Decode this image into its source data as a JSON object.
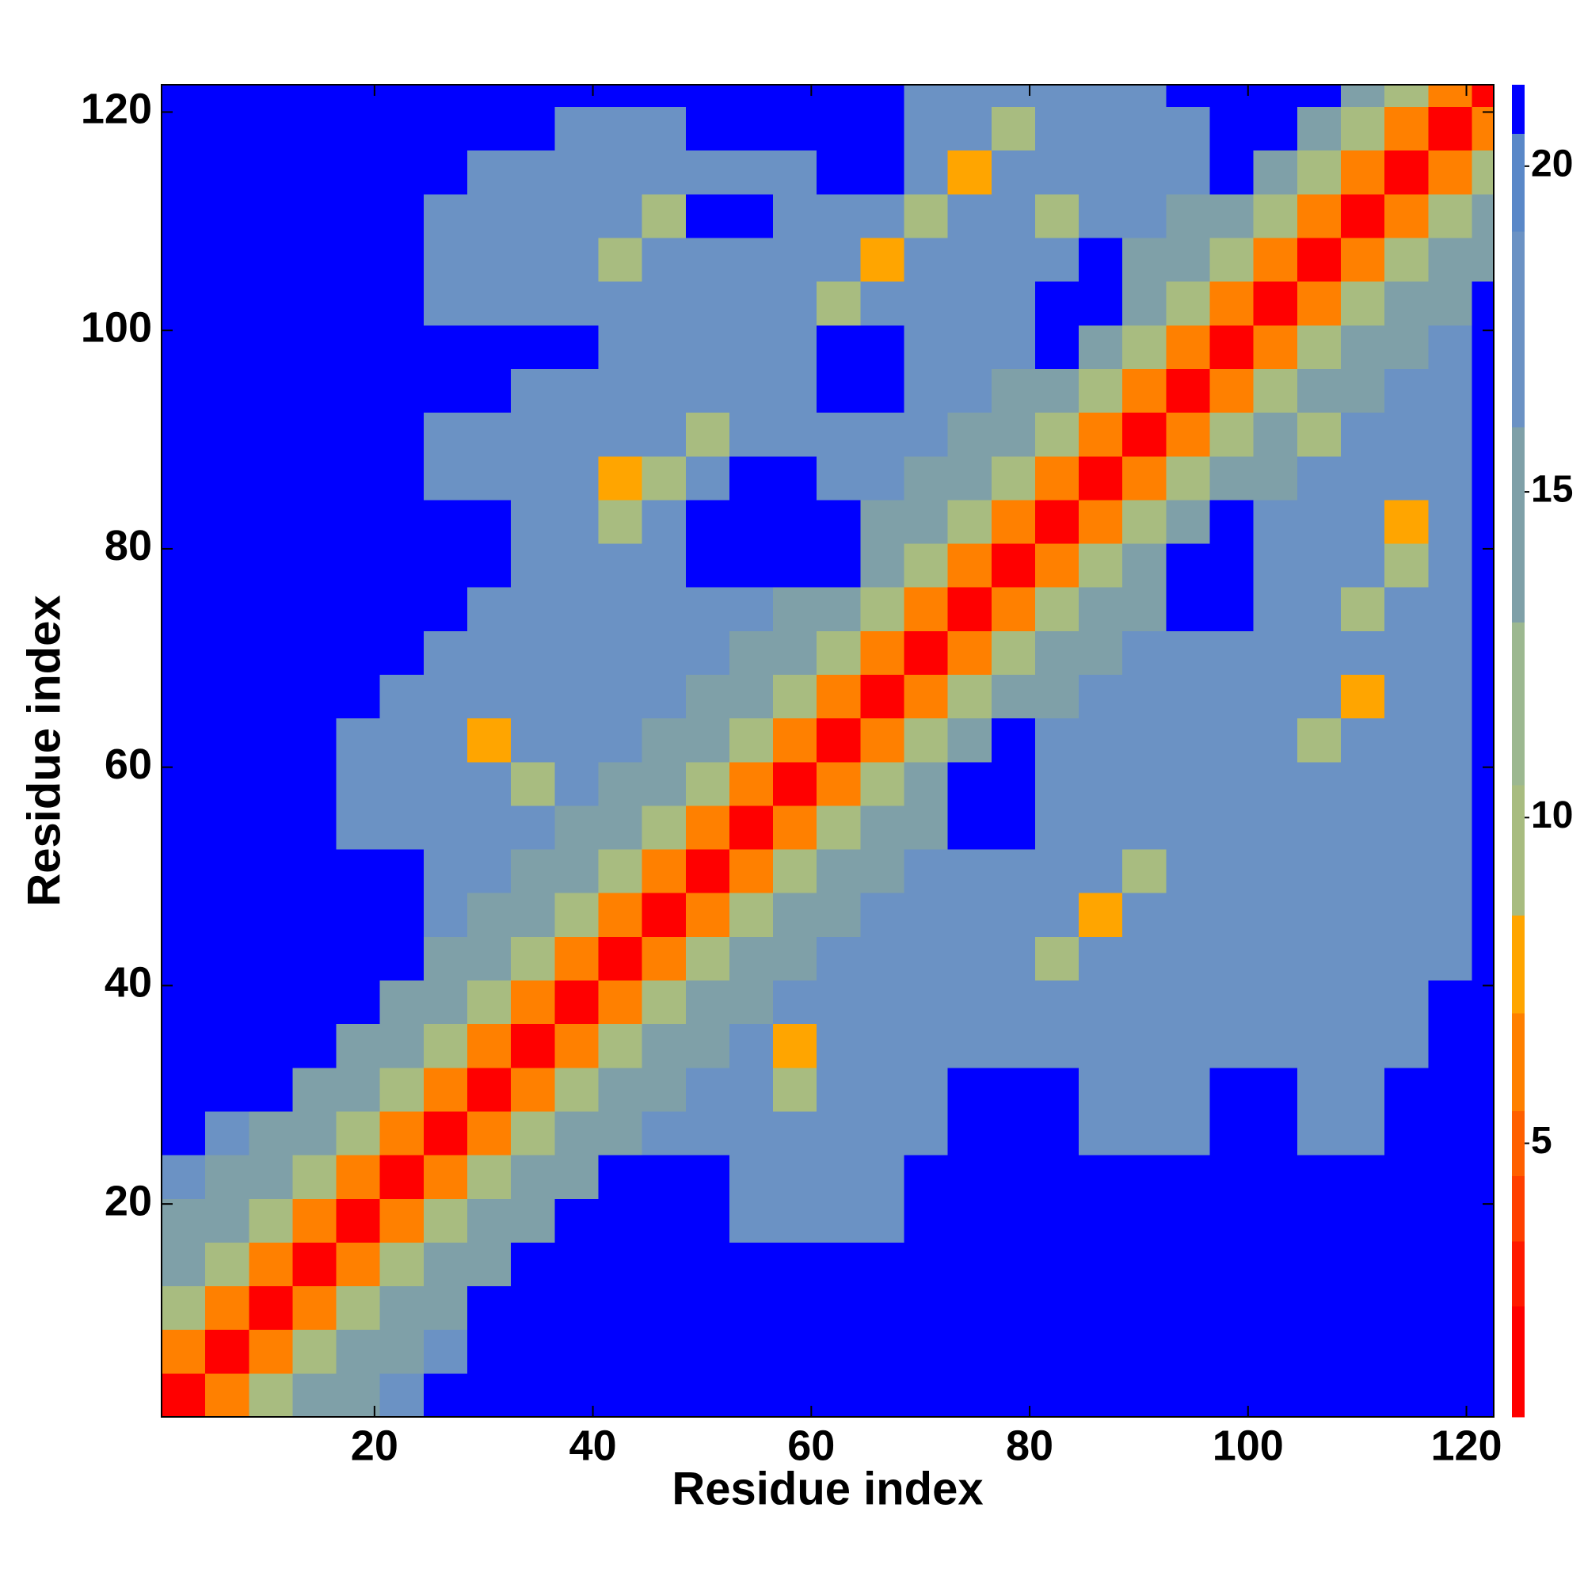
{
  "chart_data": {
    "type": "heatmap",
    "x_label": "Residue index",
    "y_label": "Residue index",
    "xlim": [
      0.5,
      122.5
    ],
    "ylim": [
      0.5,
      122.5
    ],
    "xticks": [
      20,
      40,
      60,
      80,
      100,
      120
    ],
    "yticks": [
      20,
      40,
      60,
      80,
      100,
      120
    ],
    "xbins": [
      0.5,
      4.5,
      8.5,
      12.5,
      16.5,
      20.5,
      24.5,
      28.5,
      32.5,
      36.5,
      40.5,
      44.5,
      48.5,
      52.5,
      56.5,
      60.5,
      64.5,
      68.5,
      72.5,
      76.5,
      80.5,
      84.5,
      88.5,
      92.5,
      96.5,
      100.5,
      104.5,
      108.5,
      112.5,
      116.5,
      120.5,
      122.5
    ],
    "ybins": [
      0.5,
      4.5,
      8.5,
      12.5,
      16.5,
      20.5,
      24.5,
      28.5,
      32.5,
      36.5,
      40.5,
      44.5,
      48.5,
      52.5,
      56.5,
      60.5,
      64.5,
      68.5,
      72.5,
      76.5,
      80.5,
      84.5,
      88.5,
      92.5,
      96.5,
      100.5,
      104.5,
      108.5,
      112.5,
      116.5,
      120.5,
      122.5
    ],
    "values": [
      [
        2,
        6,
        10,
        13,
        14,
        16,
        21,
        21,
        21,
        21,
        21,
        21,
        21,
        21,
        21,
        21,
        21,
        21,
        21,
        21,
        21,
        21,
        21,
        21,
        21,
        21,
        21,
        21,
        21,
        21,
        21
      ],
      [
        6,
        2,
        6,
        10,
        13,
        14,
        16,
        21,
        21,
        21,
        21,
        21,
        21,
        21,
        21,
        21,
        21,
        21,
        21,
        21,
        21,
        21,
        21,
        21,
        21,
        21,
        21,
        21,
        21,
        21,
        21
      ],
      [
        10,
        6,
        2,
        6,
        10,
        13,
        14,
        21,
        21,
        21,
        21,
        21,
        21,
        21,
        21,
        21,
        21,
        21,
        21,
        21,
        21,
        21,
        21,
        21,
        21,
        21,
        21,
        21,
        21,
        21,
        21
      ],
      [
        13,
        10,
        6,
        2,
        6,
        10,
        13,
        14,
        21,
        21,
        21,
        21,
        21,
        21,
        21,
        21,
        21,
        21,
        21,
        21,
        21,
        21,
        21,
        21,
        21,
        21,
        21,
        21,
        21,
        21,
        21
      ],
      [
        14,
        13,
        10,
        6,
        2,
        6,
        10,
        13,
        14,
        21,
        21,
        21,
        21,
        16,
        16,
        16,
        16,
        21,
        21,
        21,
        21,
        21,
        21,
        21,
        21,
        21,
        21,
        21,
        21,
        21,
        21
      ],
      [
        16,
        14,
        13,
        10,
        6,
        2,
        6,
        10,
        13,
        14,
        21,
        21,
        21,
        16,
        16,
        16,
        16,
        21,
        21,
        21,
        21,
        21,
        21,
        21,
        21,
        21,
        21,
        21,
        21,
        21,
        21
      ],
      [
        21,
        16,
        14,
        13,
        10,
        6,
        2,
        6,
        10,
        13,
        14,
        16,
        16,
        16,
        16,
        16,
        16,
        16,
        21,
        21,
        21,
        16,
        16,
        16,
        21,
        21,
        16,
        16,
        21,
        21,
        21
      ],
      [
        21,
        21,
        21,
        14,
        13,
        10,
        6,
        2,
        6,
        10,
        13,
        14,
        16,
        16,
        9,
        16,
        16,
        16,
        21,
        21,
        21,
        16,
        16,
        16,
        21,
        21,
        16,
        16,
        21,
        21,
        21
      ],
      [
        21,
        21,
        21,
        21,
        14,
        13,
        10,
        6,
        2,
        6,
        10,
        13,
        14,
        16,
        8,
        16,
        16,
        16,
        16,
        16,
        16,
        16,
        16,
        16,
        16,
        16,
        16,
        16,
        16,
        21,
        21
      ],
      [
        21,
        21,
        21,
        21,
        21,
        14,
        13,
        10,
        6,
        2,
        6,
        10,
        13,
        14,
        16,
        16,
        16,
        16,
        16,
        16,
        16,
        16,
        16,
        16,
        16,
        16,
        16,
        16,
        16,
        21,
        21
      ],
      [
        21,
        21,
        21,
        21,
        21,
        21,
        14,
        13,
        10,
        6,
        2,
        6,
        10,
        13,
        14,
        16,
        16,
        16,
        16,
        16,
        9,
        16,
        16,
        16,
        16,
        16,
        16,
        16,
        16,
        16,
        21
      ],
      [
        21,
        21,
        21,
        21,
        21,
        21,
        16,
        14,
        13,
        10,
        6,
        2,
        6,
        10,
        13,
        14,
        16,
        16,
        16,
        16,
        16,
        8,
        16,
        16,
        16,
        16,
        16,
        16,
        16,
        16,
        21
      ],
      [
        21,
        21,
        21,
        21,
        21,
        21,
        16,
        16,
        14,
        13,
        10,
        6,
        2,
        6,
        10,
        13,
        14,
        16,
        16,
        16,
        16,
        16,
        9,
        16,
        16,
        16,
        16,
        16,
        16,
        16,
        21
      ],
      [
        21,
        21,
        21,
        21,
        16,
        16,
        16,
        16,
        16,
        14,
        13,
        10,
        6,
        2,
        6,
        10,
        13,
        14,
        21,
        21,
        16,
        16,
        16,
        16,
        16,
        16,
        16,
        16,
        16,
        16,
        21
      ],
      [
        21,
        21,
        21,
        21,
        16,
        16,
        16,
        16,
        9,
        16,
        14,
        13,
        10,
        6,
        2,
        6,
        10,
        13,
        21,
        21,
        16,
        16,
        16,
        16,
        16,
        16,
        16,
        16,
        16,
        16,
        21
      ],
      [
        21,
        21,
        21,
        21,
        16,
        16,
        16,
        8,
        16,
        16,
        16,
        14,
        13,
        10,
        6,
        2,
        6,
        10,
        13,
        21,
        16,
        16,
        16,
        16,
        16,
        16,
        9,
        16,
        16,
        16,
        21
      ],
      [
        21,
        21,
        21,
        21,
        21,
        16,
        16,
        16,
        16,
        16,
        16,
        16,
        14,
        13,
        10,
        6,
        2,
        6,
        10,
        13,
        14,
        16,
        16,
        16,
        16,
        16,
        16,
        8,
        16,
        16,
        21
      ],
      [
        21,
        21,
        21,
        21,
        21,
        21,
        16,
        16,
        16,
        16,
        16,
        16,
        16,
        14,
        13,
        10,
        6,
        2,
        6,
        10,
        13,
        14,
        16,
        16,
        16,
        16,
        16,
        16,
        16,
        16,
        21
      ],
      [
        21,
        21,
        21,
        21,
        21,
        21,
        21,
        16,
        16,
        16,
        16,
        16,
        16,
        16,
        14,
        13,
        10,
        6,
        2,
        6,
        10,
        13,
        14,
        21,
        21,
        16,
        16,
        9,
        16,
        16,
        21
      ],
      [
        21,
        21,
        21,
        21,
        21,
        21,
        21,
        21,
        16,
        16,
        16,
        16,
        21,
        21,
        21,
        21,
        13,
        10,
        6,
        2,
        6,
        10,
        13,
        21,
        21,
        16,
        16,
        16,
        9,
        16,
        21
      ],
      [
        21,
        21,
        21,
        21,
        21,
        21,
        21,
        21,
        16,
        16,
        9,
        16,
        21,
        21,
        21,
        21,
        14,
        13,
        10,
        6,
        2,
        6,
        10,
        13,
        21,
        16,
        16,
        16,
        8,
        16,
        21
      ],
      [
        21,
        21,
        21,
        21,
        21,
        21,
        16,
        16,
        16,
        16,
        8,
        9,
        16,
        21,
        21,
        16,
        16,
        14,
        13,
        10,
        6,
        2,
        6,
        10,
        13,
        14,
        16,
        16,
        16,
        16,
        21
      ],
      [
        21,
        21,
        21,
        21,
        21,
        21,
        16,
        16,
        16,
        16,
        16,
        16,
        9,
        16,
        16,
        16,
        16,
        16,
        14,
        13,
        10,
        6,
        2,
        6,
        10,
        13,
        9,
        16,
        16,
        16,
        21
      ],
      [
        21,
        21,
        21,
        21,
        21,
        21,
        21,
        21,
        16,
        16,
        16,
        16,
        16,
        16,
        16,
        21,
        21,
        16,
        16,
        14,
        13,
        10,
        6,
        2,
        6,
        10,
        13,
        14,
        16,
        16,
        21
      ],
      [
        21,
        21,
        21,
        21,
        21,
        21,
        21,
        21,
        21,
        21,
        16,
        16,
        16,
        16,
        16,
        21,
        21,
        16,
        16,
        16,
        21,
        13,
        10,
        6,
        2,
        6,
        10,
        13,
        14,
        16,
        21
      ],
      [
        21,
        21,
        21,
        21,
        21,
        21,
        16,
        16,
        16,
        16,
        16,
        16,
        16,
        16,
        16,
        9,
        16,
        16,
        16,
        16,
        21,
        21,
        13,
        10,
        6,
        2,
        6,
        10,
        13,
        14,
        21
      ],
      [
        21,
        21,
        21,
        21,
        21,
        21,
        16,
        16,
        16,
        16,
        9,
        16,
        16,
        16,
        16,
        16,
        8,
        16,
        16,
        16,
        16,
        21,
        14,
        13,
        10,
        6,
        2,
        6,
        10,
        13,
        14
      ],
      [
        21,
        21,
        21,
        21,
        21,
        21,
        16,
        16,
        16,
        16,
        16,
        9,
        21,
        21,
        16,
        16,
        16,
        9,
        16,
        16,
        9,
        16,
        16,
        14,
        13,
        10,
        6,
        2,
        6,
        10,
        13
      ],
      [
        21,
        21,
        21,
        21,
        21,
        21,
        21,
        16,
        16,
        16,
        16,
        16,
        16,
        16,
        16,
        21,
        21,
        16,
        8,
        16,
        16,
        16,
        16,
        16,
        21,
        13,
        10,
        6,
        2,
        6,
        10
      ],
      [
        21,
        21,
        21,
        21,
        21,
        21,
        21,
        21,
        21,
        16,
        16,
        16,
        21,
        21,
        21,
        21,
        21,
        16,
        16,
        9,
        16,
        16,
        16,
        16,
        21,
        21,
        13,
        10,
        6,
        2,
        6
      ],
      [
        21,
        21,
        21,
        21,
        21,
        21,
        21,
        21,
        21,
        21,
        21,
        21,
        21,
        21,
        21,
        21,
        21,
        16,
        16,
        16,
        16,
        16,
        16,
        21,
        21,
        21,
        21,
        13,
        10,
        6,
        2
      ]
    ],
    "colorbar": {
      "lim": [
        0.8,
        21.25
      ],
      "ticks": [
        5,
        10,
        15,
        20
      ],
      "levels": [
        0.8,
        2.5,
        3.5,
        4.5,
        5.5,
        7,
        8.5,
        10.5,
        13,
        16,
        19,
        20.5,
        21.25
      ],
      "colors": [
        "#ff0000",
        "#ff1a00",
        "#ff4000",
        "#ff6000",
        "#ff8000",
        "#ffa500",
        "#a8bc80",
        "#9cb890",
        "#7fa0a8",
        "#6b92c4",
        "#5a88c8",
        "#0000ff"
      ]
    }
  }
}
